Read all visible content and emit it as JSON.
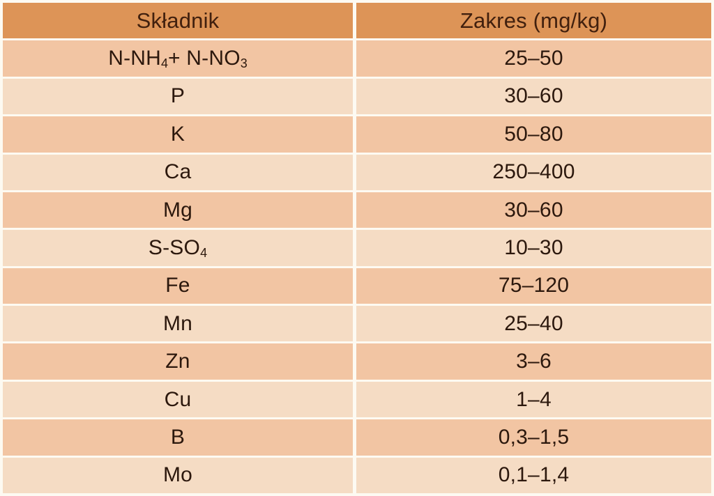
{
  "table": {
    "columns": [
      {
        "label": "Składnik"
      },
      {
        "label": "Zakres (mg/kg)"
      }
    ],
    "rows": [
      {
        "component_parts": [
          {
            "text": "N-NH"
          },
          {
            "text": "4",
            "sub": true
          },
          {
            "text": " + N-NO"
          },
          {
            "text": "3",
            "sub": true
          }
        ],
        "component_plain": "N-NH4 + N-NO3",
        "range": "25–50"
      },
      {
        "component_parts": [
          {
            "text": "P"
          }
        ],
        "component_plain": "P",
        "range": "30–60"
      },
      {
        "component_parts": [
          {
            "text": "K"
          }
        ],
        "component_plain": "K",
        "range": "50–80"
      },
      {
        "component_parts": [
          {
            "text": "Ca"
          }
        ],
        "component_plain": "Ca",
        "range": "250–400"
      },
      {
        "component_parts": [
          {
            "text": "Mg"
          }
        ],
        "component_plain": "Mg",
        "range": "30–60"
      },
      {
        "component_parts": [
          {
            "text": "S-SO"
          },
          {
            "text": "4",
            "sub": true
          }
        ],
        "component_plain": "S-SO4",
        "range": "10–30"
      },
      {
        "component_parts": [
          {
            "text": "Fe"
          }
        ],
        "component_plain": "Fe",
        "range": "75–120"
      },
      {
        "component_parts": [
          {
            "text": "Mn"
          }
        ],
        "component_plain": "Mn",
        "range": "25–40"
      },
      {
        "component_parts": [
          {
            "text": "Zn"
          }
        ],
        "component_plain": "Zn",
        "range": "3–6"
      },
      {
        "component_parts": [
          {
            "text": "Cu"
          }
        ],
        "component_plain": "Cu",
        "range": "1–4"
      },
      {
        "component_parts": [
          {
            "text": "B"
          }
        ],
        "component_plain": "B",
        "range": "0,3–1,5"
      },
      {
        "component_parts": [
          {
            "text": "Mo"
          }
        ],
        "component_plain": "Mo",
        "range": "0,1–1,4"
      }
    ],
    "row_shading_pattern": "first row dark, then alternating light/dark"
  },
  "colors": {
    "header_bg": "#DD9457",
    "row_dark_bg": "#F2C5A3",
    "row_light_bg": "#F5DCC4",
    "grid_line": "#FDFAF2",
    "header_text": "#41200E",
    "body_text": "#2C180D"
  }
}
